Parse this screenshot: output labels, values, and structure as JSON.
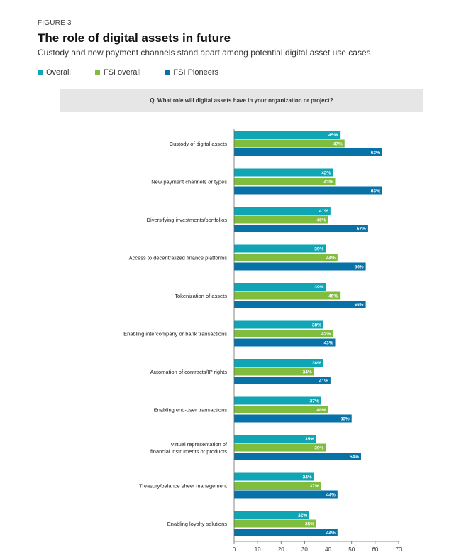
{
  "figure_label": "FIGURE 3",
  "title": "The role of digital assets in future",
  "subtitle": "Custody and new payment channels stand apart among potential digital asset use cases",
  "question": "Q.  What role will digital assets have in your organization or project?",
  "colors": {
    "Overall": "#0fa5b5",
    "FSI overall": "#80bd3d",
    "FSI Pioneers": "#0672a8",
    "question_bg": "#e6e6e6"
  },
  "chart_data": {
    "type": "bar",
    "orientation": "horizontal",
    "categories": [
      [
        "Custody of digital assets"
      ],
      [
        "New payment channels or types"
      ],
      [
        "Diversifying investments/portfolios"
      ],
      [
        "Access to decentralized finance platforms"
      ],
      [
        "Tokenization of assets"
      ],
      [
        "Enabling intercompany or bank transactions"
      ],
      [
        "Automation of contracts/IP rights"
      ],
      [
        "Enabling end-user transactions"
      ],
      [
        "Virtual representation of",
        "financial instruments or products"
      ],
      [
        "Treasury/balance sheet management"
      ],
      [
        "Enabling loyalty solutions"
      ]
    ],
    "series": [
      {
        "name": "Overall",
        "values": [
          45,
          42,
          41,
          39,
          39,
          38,
          38,
          37,
          35,
          34,
          32
        ]
      },
      {
        "name": "FSI overall",
        "values": [
          47,
          43,
          40,
          44,
          45,
          42,
          34,
          40,
          39,
          37,
          35
        ]
      },
      {
        "name": "FSI Pioneers",
        "values": [
          63,
          63,
          57,
          56,
          56,
          43,
          41,
          50,
          54,
          44,
          44
        ]
      }
    ],
    "value_suffix": "%",
    "xlim": [
      0,
      70
    ],
    "xticks": [
      "0",
      "10",
      "20",
      "30",
      "40",
      "50",
      "60",
      "70"
    ],
    "grid": false,
    "legend_position": "top-left"
  }
}
